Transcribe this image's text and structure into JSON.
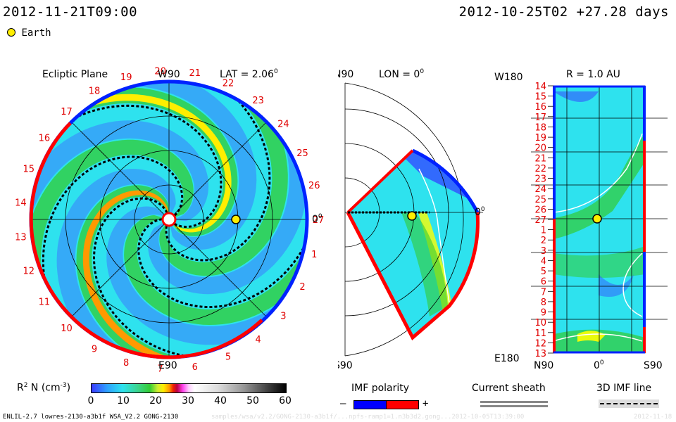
{
  "header": {
    "left_datetime": "2012-11-21T09:00",
    "right_datetime": "2012-10-25T02 +27.28 days",
    "earth_legend": "Earth"
  },
  "ecliptic": {
    "title": "Ecliptic Plane",
    "lat_label": "LAT = 2.06",
    "lat_sup": "0",
    "top_label": "W90",
    "bottom_label": "E90",
    "right_label": "0",
    "right_sup": "0",
    "carrington_numbers": [
      "1",
      "2",
      "3",
      "4",
      "5",
      "6",
      "7",
      "8",
      "9",
      "10",
      "11",
      "12",
      "13",
      "14",
      "15",
      "16",
      "17",
      "18",
      "19",
      "20",
      "21",
      "22",
      "23",
      "24",
      "25",
      "26",
      "27"
    ]
  },
  "meridional": {
    "n_label": "N90",
    "s_label": "S90",
    "lon_label": "LON = 0",
    "lon_sup": "0",
    "right_label": "0",
    "right_sup": "0"
  },
  "radial": {
    "title": "R = 1.0 AU",
    "top_left": "W180",
    "bottom_left": "E180",
    "n_label": "N90",
    "mid_label": "0",
    "mid_sup": "0",
    "s_label": "S90",
    "rows": [
      "14",
      "15",
      "16",
      "17",
      "18",
      "19",
      "20",
      "21",
      "22",
      "23",
      "24",
      "25",
      "26",
      "27",
      "1",
      "2",
      "3",
      "4",
      "5",
      "6",
      "7",
      "8",
      "9",
      "10",
      "11",
      "12",
      "13"
    ]
  },
  "colorbar": {
    "label": "R",
    "label_sup": "2",
    "label_rest": " N (cm",
    "label_sup2": "-3",
    "label_end": ")",
    "ticks": [
      "0",
      "10",
      "20",
      "30",
      "40",
      "50",
      "60"
    ]
  },
  "legends": {
    "imf_polarity": "IMF polarity",
    "minus": "–",
    "plus": "+",
    "current_sheath": "Current sheath",
    "imf_line": "3D IMF line"
  },
  "footer": {
    "left": "ENLIL-2.7 lowres-2130-a3b1f WSA_V2.2 GONG-2130",
    "middle": "samples/wsa/v2.2/GONG-2130-a3b1f/...npfs-ramp1=1.n3b3d2.gong...2012-10-05T13:39:00",
    "right": "2012-11-18"
  },
  "colors": {
    "polarity_negative": "#0000ff",
    "polarity_positive": "#ff0000",
    "earth": "#ffee00",
    "label_red": "#e00000"
  }
}
